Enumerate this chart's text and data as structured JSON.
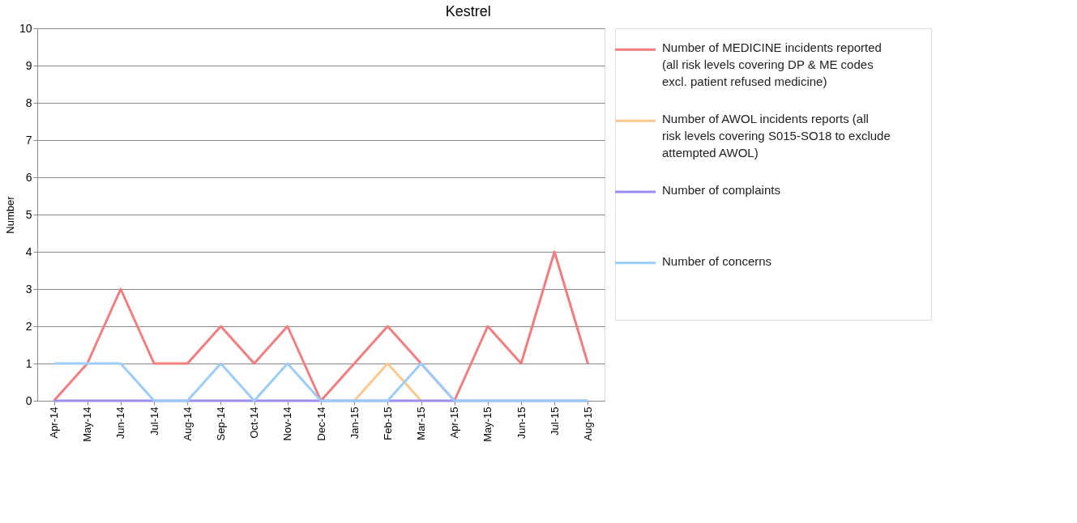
{
  "chart_data": {
    "type": "line",
    "title": "Kestrel",
    "ylabel": "Number",
    "categories": [
      "Apr-14",
      "May-14",
      "Jun-14",
      "Jul-14",
      "Aug-14",
      "Sep-14",
      "Oct-14",
      "Nov-14",
      "Dec-14",
      "Jan-15",
      "Feb-15",
      "Mar-15",
      "Apr-15",
      "May-15",
      "Jun-15",
      "Jul-15",
      "Aug-15"
    ],
    "series": [
      {
        "name": "Number of MEDICINE incidents reported (all risk levels covering DP & ME codes excl. patient refused medicine)",
        "color": "#f47c7f",
        "values": [
          0,
          1,
          3,
          1,
          1,
          2,
          1,
          2,
          0,
          1,
          2,
          1,
          0,
          2,
          1,
          4,
          1
        ]
      },
      {
        "name": "Number of AWOL incidents reports (all risk levels covering S015-SO18 to exclude attempted AWOL)",
        "color": "#fcc88f",
        "values": [
          null,
          null,
          null,
          null,
          null,
          null,
          null,
          null,
          null,
          0,
          1,
          0,
          null,
          null,
          null,
          null,
          null
        ]
      },
      {
        "name": "Number of complaints",
        "color": "#9a8ff0",
        "values": [
          0,
          0,
          0,
          0,
          0,
          0,
          0,
          0,
          0,
          0,
          0,
          0,
          0,
          0,
          0,
          0,
          0
        ]
      },
      {
        "name": "Number of concerns",
        "color": "#9cccf8",
        "values": [
          1,
          1,
          1,
          0,
          0,
          1,
          0,
          1,
          0,
          0,
          0,
          1,
          0,
          0,
          0,
          0,
          0
        ]
      }
    ],
    "ylim": [
      0,
      10
    ],
    "yticks": [
      0,
      1,
      2,
      3,
      4,
      5,
      6,
      7,
      8,
      9,
      10
    ],
    "grid": "y",
    "legend": "right",
    "marker": "none",
    "line_style": "solid"
  }
}
